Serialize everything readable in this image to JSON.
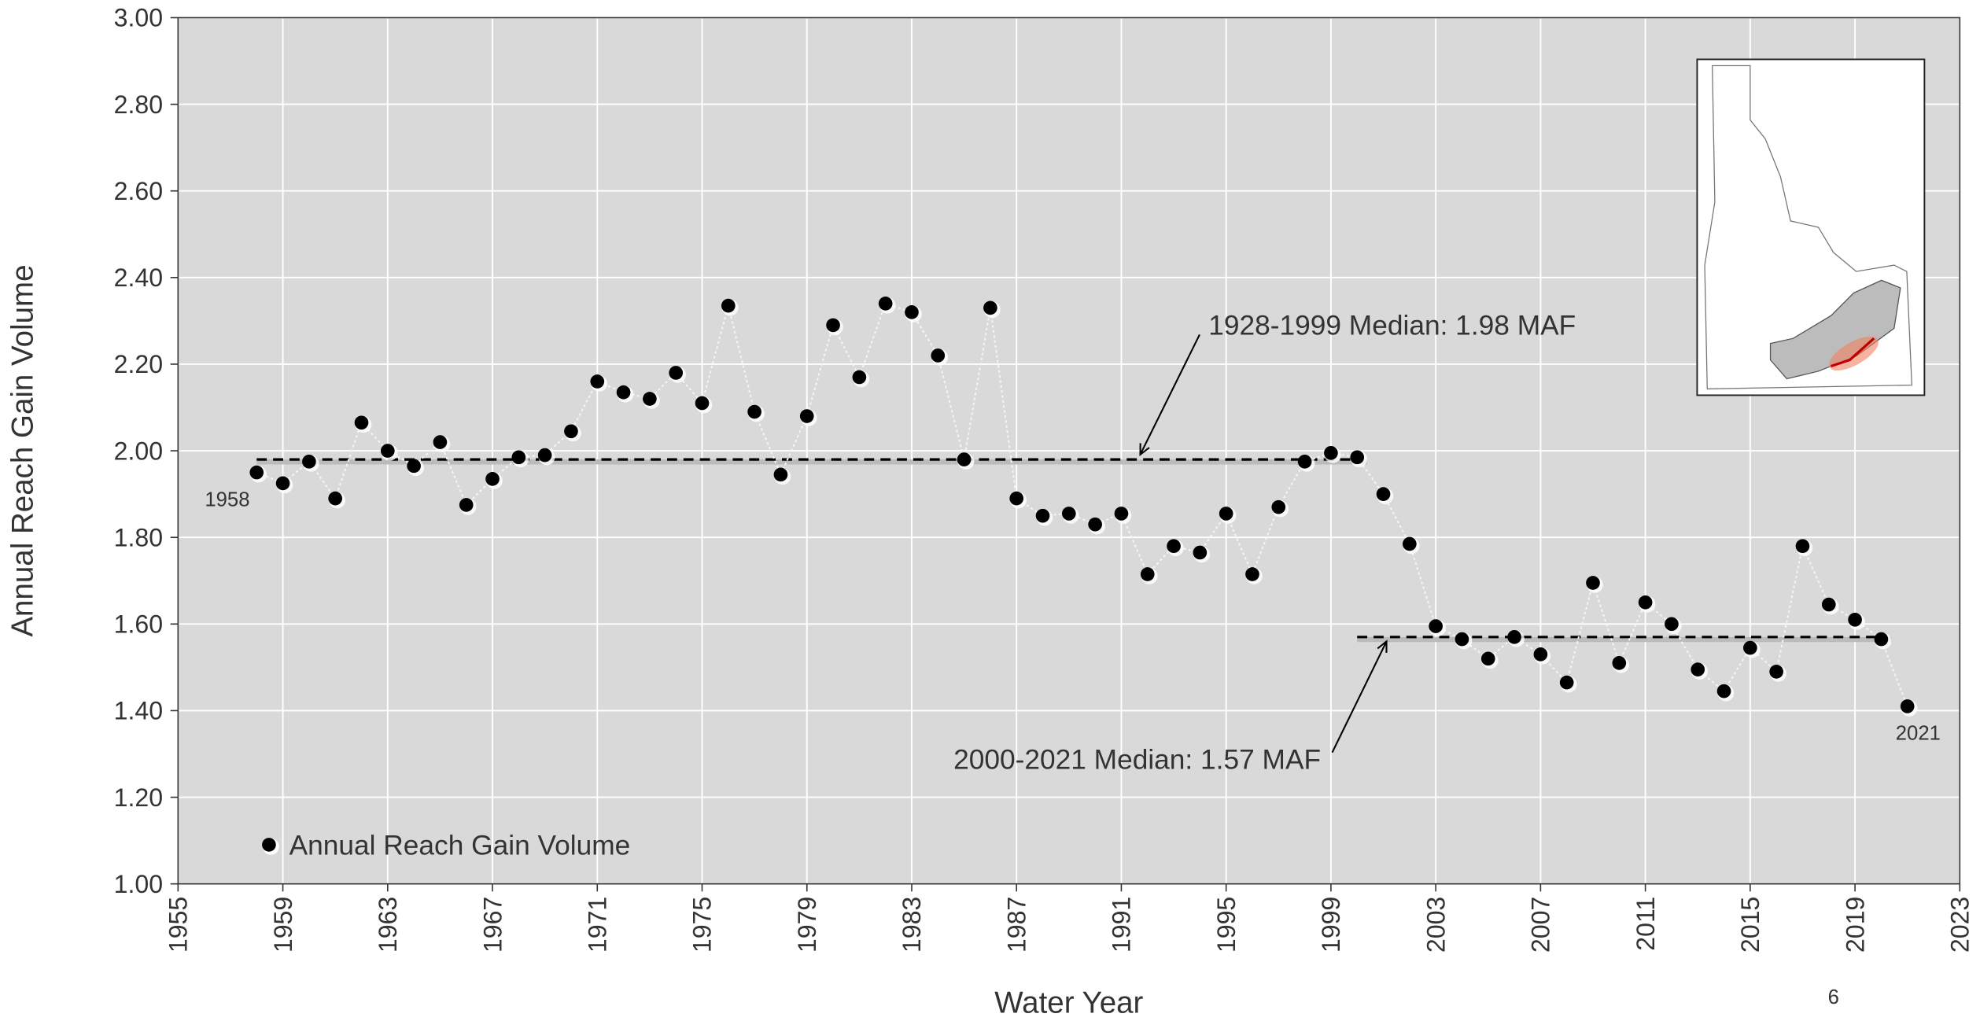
{
  "chart_data": {
    "type": "line",
    "x_label": "Water Year",
    "y_label": "Annual Reach Gain Volume",
    "x": [
      1958,
      1959,
      1960,
      1961,
      1962,
      1963,
      1964,
      1965,
      1966,
      1967,
      1968,
      1969,
      1970,
      1971,
      1972,
      1973,
      1974,
      1975,
      1976,
      1977,
      1978,
      1979,
      1980,
      1981,
      1982,
      1983,
      1984,
      1985,
      1986,
      1987,
      1988,
      1989,
      1990,
      1991,
      1992,
      1993,
      1994,
      1995,
      1996,
      1997,
      1998,
      1999,
      2000,
      2001,
      2002,
      2003,
      2004,
      2005,
      2006,
      2007,
      2008,
      2009,
      2010,
      2011,
      2012,
      2013,
      2014,
      2015,
      2016,
      2017,
      2018,
      2019,
      2020,
      2021
    ],
    "series": [
      {
        "name": "Annual Reach Gain Volume",
        "color": "#000000",
        "values": [
          1.95,
          1.925,
          1.975,
          1.89,
          2.065,
          2.0,
          1.965,
          2.02,
          1.875,
          1.935,
          1.985,
          1.99,
          2.045,
          2.16,
          2.135,
          2.12,
          2.18,
          2.11,
          2.335,
          2.09,
          1.945,
          2.08,
          2.29,
          2.17,
          2.34,
          2.32,
          2.22,
          1.98,
          2.33,
          1.89,
          1.85,
          1.855,
          1.83,
          1.855,
          1.715,
          1.78,
          1.765,
          1.855,
          1.715,
          1.87,
          1.975,
          1.995,
          1.985,
          1.9,
          1.785,
          1.595,
          1.565,
          1.52,
          1.57,
          1.53,
          1.465,
          1.695,
          1.51,
          1.65,
          1.6,
          1.495,
          1.445,
          1.545,
          1.49,
          1.78,
          1.645,
          1.61,
          1.565,
          1.41
        ]
      }
    ],
    "reference_lines": [
      {
        "label": "1928-1999 Median: 1.98 MAF",
        "value": 1.98,
        "x": [
          1958,
          2000
        ]
      },
      {
        "label": "2000-2021 Median: 1.57 MAF",
        "value": 1.57,
        "x": [
          2000,
          2020
        ]
      }
    ],
    "annotations": [
      "1958",
      "2021"
    ],
    "xlim": [
      1955,
      2023
    ],
    "xticks": [
      1955,
      1959,
      1963,
      1967,
      1971,
      1975,
      1979,
      1983,
      1987,
      1991,
      1995,
      1999,
      2003,
      2007,
      2011,
      2015,
      2019,
      2023
    ],
    "ylim": [
      1.0,
      3.0
    ],
    "yticks": [
      {
        "value": 1.0,
        "label": "1.00"
      },
      {
        "value": 1.2,
        "label": "1.20"
      },
      {
        "value": 1.4,
        "label": "1.40"
      },
      {
        "value": 1.6,
        "label": "1.60"
      },
      {
        "value": 1.8,
        "label": "1.80"
      },
      {
        "value": 2.0,
        "label": "2.00"
      },
      {
        "value": 2.2,
        "label": "2.20"
      },
      {
        "value": 2.4,
        "label": "2.40"
      },
      {
        "value": 2.6,
        "label": "2.60"
      },
      {
        "value": 2.8,
        "label": "2.80"
      },
      {
        "value": 3.0,
        "label": "3.00"
      }
    ],
    "grid": true,
    "legend": "lower left",
    "page_number": "6"
  }
}
